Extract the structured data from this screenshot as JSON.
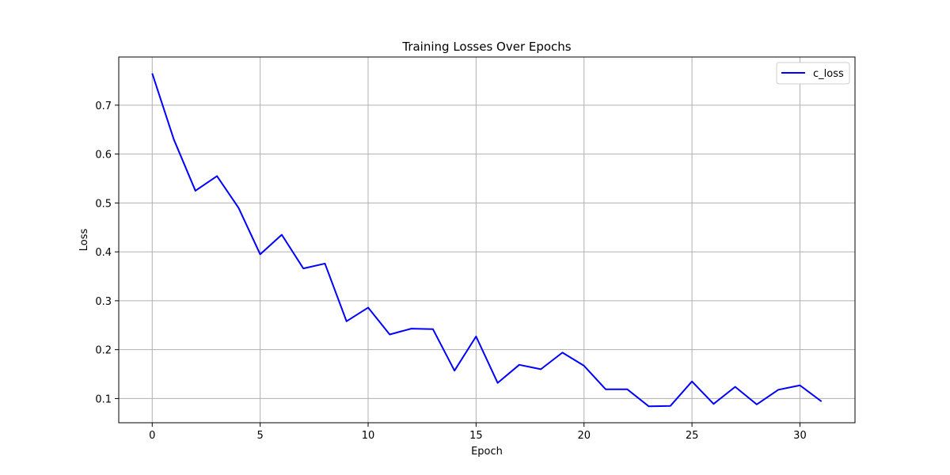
{
  "chart_data": {
    "type": "line",
    "title": "Training Losses Over Epochs",
    "xlabel": "Epoch",
    "ylabel": "Loss",
    "xlim": [
      -1.55,
      32.55
    ],
    "ylim": [
      0.0505,
      0.7985
    ],
    "x_ticks": [
      0,
      5,
      10,
      15,
      20,
      25,
      30
    ],
    "y_ticks": [
      0.1,
      0.2,
      0.3,
      0.4,
      0.5,
      0.6,
      0.7
    ],
    "grid": true,
    "legend_position": "top-right",
    "series": [
      {
        "name": "c_loss",
        "color": "#0000ff",
        "x": [
          0,
          1,
          2,
          3,
          4,
          5,
          6,
          7,
          8,
          9,
          10,
          11,
          12,
          13,
          14,
          15,
          16,
          17,
          18,
          19,
          20,
          21,
          22,
          23,
          24,
          25,
          26,
          27,
          28,
          29,
          30,
          31
        ],
        "values": [
          0.765,
          0.63,
          0.525,
          0.555,
          0.49,
          0.395,
          0.435,
          0.366,
          0.376,
          0.258,
          0.286,
          0.231,
          0.243,
          0.242,
          0.157,
          0.227,
          0.132,
          0.169,
          0.16,
          0.194,
          0.167,
          0.119,
          0.119,
          0.084,
          0.085,
          0.135,
          0.089,
          0.124,
          0.088,
          0.118,
          0.127,
          0.094
        ]
      }
    ]
  }
}
